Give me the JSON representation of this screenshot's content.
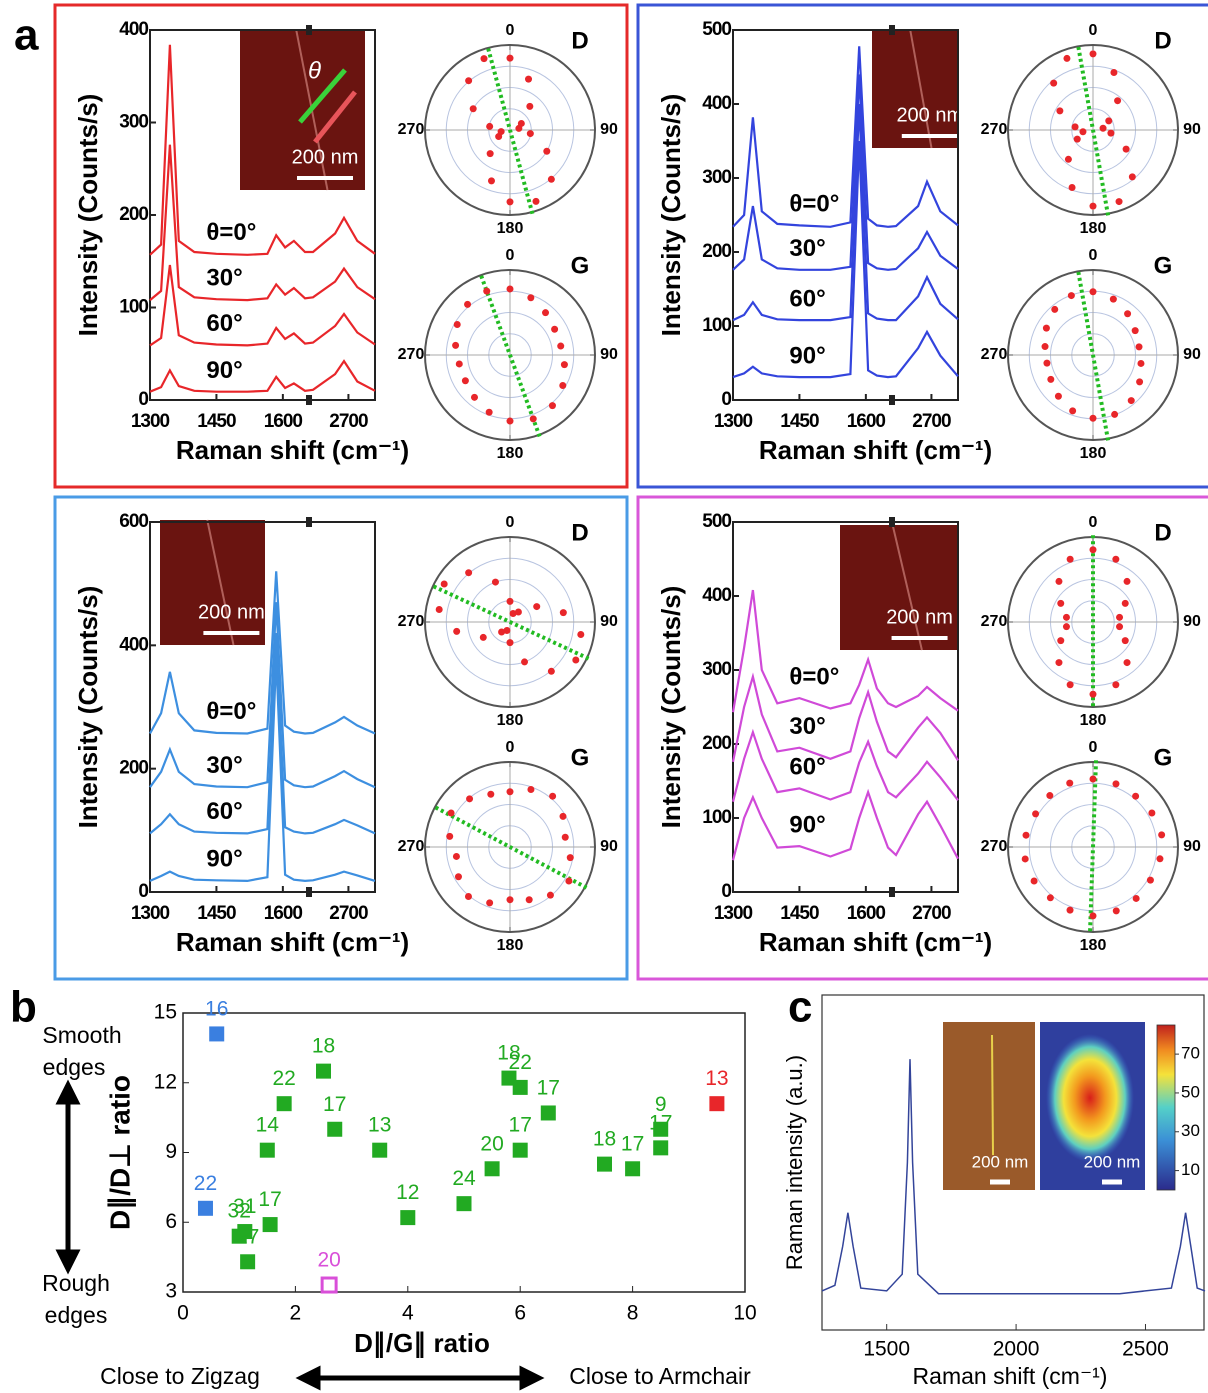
{
  "chart_data": [
    {
      "type": "spectrum",
      "panel_label": "a",
      "frame_color": "#e52a2a",
      "xlabel": "Raman shift (cm⁻¹)",
      "ylabel": "Intensity (Counts/s)",
      "xlim": [
        1300,
        2760
      ],
      "xbreak": [
        1650,
        2620
      ],
      "xticks": [
        1300,
        1450,
        1600,
        2700
      ],
      "ylim": [
        0,
        400
      ],
      "yticks": [
        0,
        100,
        200,
        300,
        400
      ],
      "inset_label": "200 nm",
      "inset_symbol": "θ",
      "x": [
        1300,
        1325,
        1345,
        1365,
        1400,
        1450,
        1520,
        1565,
        1585,
        1605,
        1625,
        1650,
        2620,
        2670,
        2690,
        2720,
        2760
      ],
      "series": [
        {
          "name": "θ=0°",
          "color": "#e8262a",
          "values": [
            157,
            168,
            384,
            172,
            160,
            158,
            157,
            158,
            178,
            165,
            172,
            160,
            160,
            180,
            197,
            172,
            158
          ]
        },
        {
          "name": "30°",
          "color": "#e8262a",
          "values": [
            108,
            118,
            276,
            122,
            111,
            109,
            108,
            110,
            125,
            114,
            121,
            110,
            111,
            128,
            142,
            122,
            109
          ]
        },
        {
          "name": "60°",
          "color": "#e8262a",
          "values": [
            59,
            67,
            146,
            70,
            62,
            60,
            59,
            61,
            78,
            66,
            72,
            61,
            62,
            80,
            93,
            73,
            60
          ]
        },
        {
          "name": "90°",
          "color": "#e8262a",
          "values": [
            9,
            14,
            32,
            15,
            10,
            9,
            9,
            10,
            25,
            13,
            18,
            10,
            11,
            28,
            42,
            20,
            10
          ]
        }
      ]
    },
    {
      "type": "polar",
      "title": "D",
      "thetaticks": [
        0,
        90,
        180,
        270
      ],
      "rlim": [
        0,
        1
      ],
      "color": "#e8262a",
      "fit_color": "#22bb22",
      "fit_angle": 165,
      "theta": [
        0,
        20,
        40,
        60,
        80,
        100,
        120,
        140,
        160,
        180,
        200,
        220,
        240,
        260,
        280,
        300,
        320,
        340
      ],
      "r": [
        0.846,
        0.637,
        0.363,
        0.154,
        0.106,
        0.243,
        0.5,
        0.757,
        0.894,
        0.846,
        0.637,
        0.363,
        0.154,
        0.106,
        0.243,
        0.5,
        0.757,
        0.894
      ]
    },
    {
      "type": "polar",
      "title": "G",
      "thetaticks": [
        0,
        90,
        180,
        270
      ],
      "rlim": [
        0,
        1
      ],
      "color": "#e8262a",
      "fit_color": "#22bb22",
      "fit_angle": 160,
      "theta": [
        0,
        20,
        40,
        60,
        80,
        100,
        120,
        140,
        160,
        180,
        200,
        220,
        240,
        260,
        280,
        300,
        320,
        340
      ],
      "r": [
        0.777,
        0.717,
        0.65,
        0.606,
        0.606,
        0.65,
        0.717,
        0.777,
        0.8,
        0.777,
        0.717,
        0.65,
        0.606,
        0.606,
        0.65,
        0.717,
        0.777,
        0.8
      ]
    },
    {
      "type": "spectrum",
      "frame_color": "#3a55d6",
      "xlabel": "Raman shift (cm⁻¹)",
      "ylabel": "Intensity (Counts/s)",
      "xlim": [
        1300,
        2760
      ],
      "xbreak": [
        1650,
        2620
      ],
      "xticks": [
        1300,
        1450,
        1600,
        2700
      ],
      "ylim": [
        0,
        500
      ],
      "yticks": [
        0,
        100,
        200,
        300,
        400,
        500
      ],
      "inset_label": "200 nm",
      "x": [
        1300,
        1325,
        1345,
        1365,
        1400,
        1450,
        1520,
        1565,
        1585,
        1605,
        1625,
        1650,
        2620,
        2670,
        2690,
        2720,
        2760
      ],
      "series": [
        {
          "name": "θ=0°",
          "color": "#3344dd",
          "values": [
            234,
            250,
            382,
            255,
            238,
            236,
            234,
            240,
            478,
            245,
            236,
            234,
            235,
            262,
            295,
            255,
            236
          ]
        },
        {
          "name": "30°",
          "color": "#3344dd",
          "values": [
            176,
            190,
            262,
            190,
            178,
            176,
            176,
            180,
            440,
            185,
            178,
            176,
            177,
            205,
            227,
            195,
            177
          ]
        },
        {
          "name": "60°",
          "color": "#3344dd",
          "values": [
            108,
            115,
            132,
            115,
            109,
            108,
            108,
            112,
            400,
            117,
            110,
            108,
            108,
            140,
            166,
            130,
            109
          ]
        },
        {
          "name": "90°",
          "color": "#3344dd",
          "values": [
            31,
            36,
            45,
            36,
            32,
            31,
            31,
            35,
            350,
            40,
            33,
            31,
            32,
            70,
            92,
            60,
            32
          ]
        }
      ]
    },
    {
      "type": "polar",
      "title": "D",
      "thetaticks": [
        0,
        90,
        180,
        270
      ],
      "rlim": [
        0,
        1
      ],
      "color": "#e8262a",
      "fit_color": "#22bb22",
      "fit_angle": 170,
      "theta": [
        0,
        20,
        40,
        60,
        80,
        100,
        120,
        140,
        160,
        180,
        200,
        220,
        240,
        260,
        280,
        300,
        320,
        340
      ],
      "r": [
        0.896,
        0.72,
        0.45,
        0.214,
        0.12,
        0.214,
        0.45,
        0.72,
        0.896,
        0.896,
        0.72,
        0.45,
        0.214,
        0.12,
        0.214,
        0.45,
        0.72,
        0.896
      ]
    },
    {
      "type": "polar",
      "title": "G",
      "thetaticks": [
        0,
        90,
        180,
        270
      ],
      "rlim": [
        0,
        1
      ],
      "color": "#e8262a",
      "fit_color": "#22bb22",
      "fit_angle": 170,
      "theta": [
        0,
        20,
        40,
        60,
        80,
        100,
        120,
        140,
        160,
        180,
        200,
        220,
        240,
        260,
        280,
        300,
        320,
        340
      ],
      "r": [
        0.744,
        0.7,
        0.633,
        0.573,
        0.55,
        0.573,
        0.633,
        0.7,
        0.744,
        0.744,
        0.7,
        0.633,
        0.573,
        0.55,
        0.573,
        0.633,
        0.7,
        0.744
      ]
    },
    {
      "type": "spectrum",
      "frame_color": "#4a9be6",
      "xlabel": "Raman shift (cm⁻¹)",
      "ylabel": "Intensity (Counts/s)",
      "xlim": [
        1300,
        2760
      ],
      "xbreak": [
        1650,
        2620
      ],
      "xticks": [
        1300,
        1450,
        1600,
        2700
      ],
      "ylim": [
        0,
        600
      ],
      "yticks": [
        0,
        200,
        400,
        600
      ],
      "inset_label": "200 nm",
      "x": [
        1300,
        1325,
        1345,
        1365,
        1400,
        1450,
        1520,
        1565,
        1585,
        1605,
        1625,
        1650,
        2620,
        2670,
        2690,
        2720,
        2760
      ],
      "series": [
        {
          "name": "θ=0°",
          "color": "#3d8fe0",
          "values": [
            257,
            290,
            357,
            290,
            262,
            258,
            257,
            265,
            520,
            270,
            260,
            257,
            258,
            275,
            284,
            270,
            257
          ]
        },
        {
          "name": "30°",
          "color": "#3d8fe0",
          "values": [
            170,
            195,
            231,
            195,
            175,
            171,
            170,
            178,
            470,
            182,
            173,
            170,
            171,
            188,
            196,
            183,
            170
          ]
        },
        {
          "name": "60°",
          "color": "#3d8fe0",
          "values": [
            95,
            110,
            126,
            110,
            98,
            96,
            95,
            102,
            420,
            105,
            98,
            95,
            96,
            110,
            117,
            108,
            95
          ]
        },
        {
          "name": "90°",
          "color": "#3d8fe0",
          "values": [
            18,
            26,
            33,
            26,
            20,
            19,
            18,
            24,
            380,
            28,
            20,
            18,
            19,
            28,
            33,
            27,
            18
          ]
        }
      ]
    },
    {
      "type": "polar",
      "title": "D",
      "thetaticks": [
        0,
        90,
        180,
        270
      ],
      "rlim": [
        0,
        1
      ],
      "color": "#e8262a",
      "fit_color": "#22bb22",
      "fit_angle": 115,
      "theta": [
        0,
        20,
        40,
        60,
        80,
        100,
        120,
        140,
        160,
        180,
        200,
        220,
        240,
        260,
        280,
        300,
        320,
        340
      ],
      "r": [
        0.243,
        0.106,
        0.154,
        0.363,
        0.637,
        0.846,
        0.894,
        0.757,
        0.5,
        0.243,
        0.106,
        0.154,
        0.363,
        0.637,
        0.846,
        0.894,
        0.757,
        0.5
      ]
    },
    {
      "type": "polar",
      "title": "G",
      "thetaticks": [
        0,
        90,
        180,
        270
      ],
      "rlim": [
        0,
        1
      ],
      "color": "#e8262a",
      "fit_color": "#22bb22",
      "fit_angle": 118,
      "theta": [
        0,
        20,
        40,
        60,
        80,
        100,
        120,
        140,
        160,
        180,
        200,
        220,
        240,
        260,
        280,
        300,
        320,
        340
      ],
      "r": [
        0.65,
        0.72,
        0.78,
        0.72,
        0.66,
        0.72,
        0.8,
        0.74,
        0.66,
        0.62,
        0.7,
        0.76,
        0.7,
        0.64,
        0.72,
        0.8,
        0.74,
        0.66
      ]
    },
    {
      "type": "spectrum",
      "frame_color": "#d957d9",
      "xlabel": "Raman shift (cm⁻¹)",
      "ylabel": "Intensity (Counts/s)",
      "xlim": [
        1300,
        2760
      ],
      "xbreak": [
        1650,
        2620
      ],
      "xticks": [
        1300,
        1450,
        1600,
        2700
      ],
      "ylim": [
        0,
        500
      ],
      "yticks": [
        0,
        100,
        200,
        300,
        400,
        500
      ],
      "inset_label": "200 nm",
      "x": [
        1300,
        1325,
        1345,
        1365,
        1400,
        1450,
        1520,
        1565,
        1585,
        1605,
        1625,
        1650,
        2620,
        2670,
        2690,
        2720,
        2760
      ],
      "series": [
        {
          "name": "θ=0°",
          "color": "#d04ad8",
          "values": [
            243,
            330,
            408,
            300,
            255,
            262,
            248,
            255,
            280,
            314,
            275,
            255,
            250,
            265,
            277,
            262,
            245
          ]
        },
        {
          "name": "30°",
          "color": "#d04ad8",
          "values": [
            176,
            250,
            291,
            240,
            190,
            195,
            180,
            190,
            235,
            270,
            230,
            190,
            182,
            222,
            236,
            215,
            178
          ]
        },
        {
          "name": "60°",
          "color": "#d04ad8",
          "values": [
            122,
            180,
            216,
            180,
            135,
            140,
            125,
            135,
            175,
            203,
            170,
            135,
            128,
            160,
            176,
            155,
            124
          ]
        },
        {
          "name": "90°",
          "color": "#d04ad8",
          "values": [
            43,
            100,
            128,
            100,
            60,
            62,
            48,
            58,
            100,
            135,
            100,
            60,
            50,
            105,
            122,
            90,
            45
          ]
        }
      ]
    },
    {
      "type": "polar",
      "title": "D",
      "thetaticks": [
        0,
        90,
        180,
        270
      ],
      "rlim": [
        0,
        1
      ],
      "color": "#e8262a",
      "fit_color": "#22bb22",
      "fit_angle": 0,
      "theta": [
        0,
        20,
        40,
        60,
        80,
        100,
        120,
        140,
        160,
        180,
        200,
        220,
        240,
        260,
        280,
        300,
        320,
        340
      ],
      "r": [
        0.85,
        0.786,
        0.623,
        0.438,
        0.317,
        0.317,
        0.438,
        0.623,
        0.786,
        0.85,
        0.786,
        0.623,
        0.438,
        0.317,
        0.317,
        0.438,
        0.623,
        0.786
      ]
    },
    {
      "type": "polar",
      "title": "G",
      "thetaticks": [
        0,
        90,
        180,
        270
      ],
      "rlim": [
        0,
        1
      ],
      "color": "#e8262a",
      "fit_color": "#22bb22",
      "fit_angle": 2,
      "theta": [
        0,
        20,
        40,
        60,
        80,
        100,
        120,
        140,
        160,
        180,
        200,
        220,
        240,
        260,
        280,
        300,
        320,
        340
      ],
      "r": [
        0.8,
        0.79,
        0.78,
        0.8,
        0.82,
        0.8,
        0.78,
        0.79,
        0.8,
        0.81,
        0.79,
        0.78,
        0.8,
        0.81,
        0.8,
        0.78,
        0.79,
        0.8
      ]
    },
    {
      "type": "scatter",
      "panel_label": "b",
      "xlabel": "D∥/G∥ ratio",
      "ylabel": "D∥/D⊥ ratio",
      "top_note": [
        "Smooth",
        "edges"
      ],
      "bottom_note": [
        "Rough",
        "edges"
      ],
      "left_note": "Close to Zigzag",
      "right_note": "Close to Armchair",
      "xlim": [
        0,
        10
      ],
      "xticks": [
        0,
        2,
        4,
        6,
        8,
        10
      ],
      "ylim": [
        3,
        15
      ],
      "yticks": [
        3,
        6,
        9,
        12,
        15
      ],
      "series": [
        {
          "color": "#22aa22",
          "filled": true,
          "x": [
            1.5,
            1.8,
            2.5,
            2.7,
            3.5,
            4.0,
            5.0,
            5.5,
            5.8,
            6.0,
            6.0,
            6.5,
            7.5,
            8.0,
            8.5,
            8.5,
            1.0,
            1.1,
            1.15,
            1.55
          ],
          "values": [
            9.1,
            11.1,
            12.5,
            10.0,
            9.1,
            6.2,
            6.8,
            8.3,
            12.2,
            11.8,
            9.1,
            10.7,
            8.5,
            8.3,
            9.2,
            10.0,
            5.4,
            5.6,
            4.3,
            5.9
          ],
          "point_labels": [
            14,
            22,
            18,
            17,
            13,
            12,
            24,
            20,
            18,
            22,
            17,
            17,
            18,
            17,
            17,
            9,
            32,
            31,
            27,
            17
          ]
        },
        {
          "color": "#3a7fe0",
          "filled": true,
          "x": [
            0.6,
            0.4
          ],
          "values": [
            14.1,
            6.6
          ],
          "point_labels": [
            16,
            22
          ]
        },
        {
          "color": "#e8262a",
          "filled": true,
          "x": [
            9.5
          ],
          "values": [
            11.1
          ],
          "point_labels": [
            13
          ]
        },
        {
          "color": "#d94fd9",
          "filled": false,
          "x": [
            2.6
          ],
          "values": [
            3.3
          ],
          "point_labels": [
            20
          ]
        }
      ]
    },
    {
      "type": "line",
      "panel_label": "c",
      "xlabel": "Raman shift (cm⁻¹)",
      "ylabel": "Raman intensity (a.u.)",
      "color": "#33449a",
      "xlim": [
        1250,
        2730
      ],
      "xticks": [
        1500,
        2000,
        2500
      ],
      "ylim": [
        0,
        1.2
      ],
      "x": [
        1250,
        1300,
        1330,
        1350,
        1370,
        1400,
        1500,
        1560,
        1580,
        1590,
        1600,
        1620,
        1700,
        1800,
        2000,
        2200,
        2400,
        2600,
        2635,
        2655,
        2675,
        2700,
        2730
      ],
      "values": [
        0.14,
        0.16,
        0.3,
        0.42,
        0.3,
        0.15,
        0.14,
        0.2,
        0.6,
        0.97,
        0.6,
        0.2,
        0.13,
        0.13,
        0.13,
        0.13,
        0.13,
        0.15,
        0.3,
        0.42,
        0.3,
        0.15,
        0.14
      ],
      "inset_labels": [
        "200 nm",
        "200 nm"
      ],
      "colorbar": {
        "lim": [
          0,
          85
        ],
        "ticks": [
          10,
          30,
          50,
          70
        ]
      }
    }
  ]
}
